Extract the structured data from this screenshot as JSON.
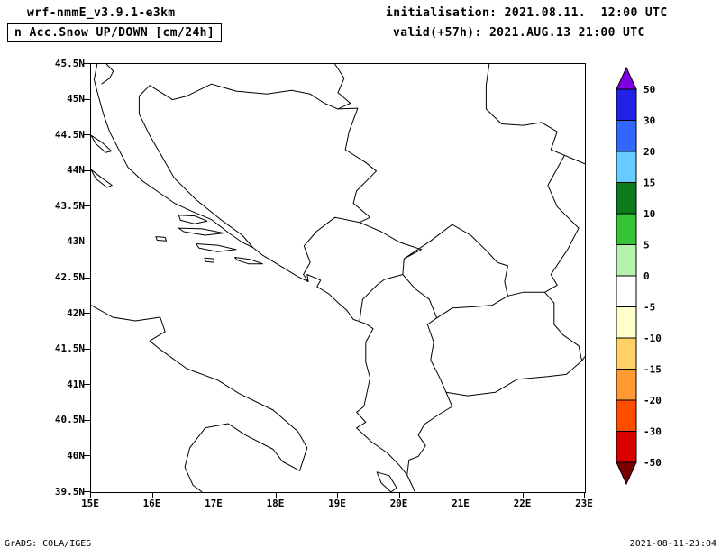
{
  "header": {
    "model_line": "wrf-nmmE_v3.9.1-e3km",
    "product_line": "n Acc.Snow UP/DOWN [cm/24h]",
    "init_line": "initialisation: 2021.08.11.  12:00 UTC",
    "valid_line": "valid(+57h): 2021.AUG.13 21:00 UTC"
  },
  "footer": {
    "credit": "GrADS: COLA/IGES",
    "timestamp": "2021-08-11-23:04"
  },
  "chart_data": {
    "type": "heatmap",
    "title": "24h accumulated snow up/down (cm/24h), wrf-nmmE_v3.9.1-e3km",
    "projection": "lat-lon map of Adriatic / Balkans",
    "lon_range": [
      15,
      23
    ],
    "lat_range": [
      39.5,
      45.5
    ],
    "x_ticks": [
      "15E",
      "16E",
      "17E",
      "18E",
      "19E",
      "20E",
      "21E",
      "22E",
      "23E"
    ],
    "y_ticks": [
      "45.5N",
      "45N",
      "44.5N",
      "44N",
      "43.5N",
      "43N",
      "42.5N",
      "42N",
      "41.5N",
      "41N",
      "40.5N",
      "40N",
      "39.5N"
    ],
    "grid": false,
    "field_value_note": "Entire domain is white: 0 cm/24h accumulated snow everywhere (no shaded data).",
    "colorbar": {
      "unit": "cm/24h",
      "boundary_labels": [
        "50",
        "30",
        "20",
        "15",
        "10",
        "5",
        "0",
        "-5",
        "-10",
        "-15",
        "-20",
        "-30",
        "-50"
      ],
      "cell_colors_top_to_bottom": [
        "#2222e6",
        "#3366ff",
        "#66ccff",
        "#0e7a1e",
        "#35c435",
        "#b5f2ae",
        "#ffffff",
        "#ffffcc",
        "#ffd066",
        "#ff9933",
        "#ff4d00",
        "#d90000"
      ],
      "arrow_top_color": "#8000e6",
      "arrow_bottom_color": "#7a0000"
    },
    "map_outlines": [
      {
        "name": "italy-coast",
        "closed": false,
        "pts": [
          [
            15.0,
            42.12
          ],
          [
            15.35,
            41.95
          ],
          [
            15.72,
            41.9
          ],
          [
            16.12,
            41.95
          ],
          [
            16.2,
            41.75
          ],
          [
            15.95,
            41.62
          ],
          [
            16.12,
            41.5
          ],
          [
            16.55,
            41.23
          ],
          [
            17.05,
            41.07
          ],
          [
            17.4,
            40.88
          ],
          [
            17.95,
            40.65
          ],
          [
            18.35,
            40.35
          ],
          [
            18.5,
            40.12
          ],
          [
            18.38,
            39.8
          ],
          [
            18.1,
            39.93
          ],
          [
            17.95,
            40.1
          ],
          [
            17.5,
            40.3
          ],
          [
            17.22,
            40.46
          ],
          [
            16.85,
            40.4
          ],
          [
            16.6,
            40.12
          ],
          [
            16.52,
            39.85
          ],
          [
            16.65,
            39.6
          ],
          [
            16.8,
            39.5
          ]
        ]
      },
      {
        "name": "east-adriatic-coast",
        "closed": false,
        "pts": [
          [
            15.1,
            45.5
          ],
          [
            15.05,
            45.28
          ],
          [
            15.12,
            45.05
          ],
          [
            15.2,
            44.8
          ],
          [
            15.3,
            44.55
          ],
          [
            15.45,
            44.3
          ],
          [
            15.6,
            44.05
          ],
          [
            15.85,
            43.85
          ],
          [
            16.1,
            43.7
          ],
          [
            16.35,
            43.55
          ],
          [
            16.62,
            43.44
          ],
          [
            16.95,
            43.32
          ],
          [
            17.25,
            43.12
          ],
          [
            17.45,
            43.0
          ],
          [
            17.62,
            42.93
          ],
          [
            17.78,
            42.82
          ],
          [
            18.05,
            42.68
          ],
          [
            18.35,
            42.52
          ],
          [
            18.52,
            42.45
          ],
          [
            18.5,
            42.55
          ],
          [
            18.72,
            42.47
          ],
          [
            18.66,
            42.38
          ],
          [
            18.85,
            42.28
          ],
          [
            19.02,
            42.14
          ],
          [
            19.14,
            42.05
          ],
          [
            19.25,
            41.92
          ],
          [
            19.45,
            41.86
          ],
          [
            19.57,
            41.79
          ],
          [
            19.45,
            41.6
          ],
          [
            19.45,
            41.32
          ],
          [
            19.52,
            41.1
          ],
          [
            19.47,
            40.9
          ],
          [
            19.42,
            40.7
          ],
          [
            19.3,
            40.62
          ],
          [
            19.45,
            40.48
          ],
          [
            19.3,
            40.4
          ],
          [
            19.55,
            40.2
          ],
          [
            19.8,
            40.05
          ],
          [
            20.0,
            39.87
          ],
          [
            20.12,
            39.74
          ],
          [
            20.25,
            39.5
          ]
        ]
      },
      {
        "name": "pag-island",
        "closed": true,
        "pts": [
          [
            15.0,
            44.5
          ],
          [
            15.18,
            44.4
          ],
          [
            15.33,
            44.28
          ],
          [
            15.24,
            44.26
          ],
          [
            15.08,
            44.38
          ]
        ]
      },
      {
        "name": "dugi-otok-island",
        "closed": true,
        "pts": [
          [
            15.0,
            44.02
          ],
          [
            15.18,
            43.9
          ],
          [
            15.34,
            43.8
          ],
          [
            15.26,
            43.77
          ],
          [
            15.08,
            43.89
          ]
        ]
      },
      {
        "name": "brac-island",
        "closed": true,
        "pts": [
          [
            16.42,
            43.38
          ],
          [
            16.68,
            43.37
          ],
          [
            16.88,
            43.3
          ],
          [
            16.68,
            43.26
          ],
          [
            16.45,
            43.31
          ]
        ]
      },
      {
        "name": "hvar-island",
        "closed": true,
        "pts": [
          [
            16.42,
            43.2
          ],
          [
            16.8,
            43.19
          ],
          [
            17.15,
            43.13
          ],
          [
            16.85,
            43.1
          ],
          [
            16.5,
            43.15
          ]
        ]
      },
      {
        "name": "korcula-island",
        "closed": true,
        "pts": [
          [
            16.7,
            42.98
          ],
          [
            17.05,
            42.96
          ],
          [
            17.35,
            42.9
          ],
          [
            17.05,
            42.87
          ],
          [
            16.75,
            42.92
          ]
        ]
      },
      {
        "name": "mljet-island",
        "closed": true,
        "pts": [
          [
            17.33,
            42.79
          ],
          [
            17.58,
            42.76
          ],
          [
            17.78,
            42.7
          ],
          [
            17.55,
            42.7
          ],
          [
            17.37,
            42.75
          ]
        ]
      },
      {
        "name": "vis-island",
        "closed": true,
        "pts": [
          [
            16.05,
            43.08
          ],
          [
            16.2,
            43.07
          ],
          [
            16.22,
            43.02
          ],
          [
            16.07,
            43.03
          ]
        ]
      },
      {
        "name": "lastovo-island",
        "closed": true,
        "pts": [
          [
            16.84,
            42.78
          ],
          [
            16.99,
            42.77
          ],
          [
            16.99,
            42.72
          ],
          [
            16.86,
            42.73
          ]
        ]
      },
      {
        "name": "corfu-island",
        "closed": true,
        "pts": [
          [
            19.63,
            39.78
          ],
          [
            19.83,
            39.73
          ],
          [
            19.95,
            39.56
          ],
          [
            19.86,
            39.5
          ],
          [
            19.7,
            39.63
          ]
        ]
      },
      {
        "name": "slovenia-croatia-border",
        "closed": false,
        "pts": [
          [
            15.25,
            45.5
          ],
          [
            15.36,
            45.4
          ],
          [
            15.3,
            45.3
          ],
          [
            15.17,
            45.22
          ]
        ]
      },
      {
        "name": "croatia-bosnia-border",
        "closed": false,
        "pts": [
          [
            17.62,
            42.93
          ],
          [
            17.45,
            43.1
          ],
          [
            17.1,
            43.32
          ],
          [
            16.7,
            43.6
          ],
          [
            16.35,
            43.9
          ],
          [
            16.15,
            44.2
          ],
          [
            15.95,
            44.5
          ],
          [
            15.78,
            44.8
          ],
          [
            15.78,
            45.05
          ],
          [
            15.95,
            45.2
          ],
          [
            16.32,
            45.0
          ],
          [
            16.55,
            45.05
          ],
          [
            16.95,
            45.22
          ],
          [
            17.35,
            45.12
          ],
          [
            17.85,
            45.08
          ],
          [
            18.25,
            45.13
          ],
          [
            18.55,
            45.08
          ],
          [
            18.78,
            44.95
          ],
          [
            19.0,
            44.87
          ]
        ]
      },
      {
        "name": "bosnia-serbia-border",
        "closed": false,
        "pts": [
          [
            19.0,
            44.87
          ],
          [
            19.32,
            44.88
          ],
          [
            19.18,
            44.55
          ],
          [
            19.12,
            44.3
          ],
          [
            19.45,
            44.12
          ],
          [
            19.62,
            44.0
          ],
          [
            19.3,
            43.72
          ],
          [
            19.25,
            43.55
          ],
          [
            19.52,
            43.35
          ],
          [
            19.35,
            43.28
          ]
        ]
      },
      {
        "name": "bosnia-montenegro-border",
        "closed": false,
        "pts": [
          [
            19.35,
            43.28
          ],
          [
            18.95,
            43.35
          ],
          [
            18.65,
            43.15
          ],
          [
            18.45,
            42.95
          ],
          [
            18.55,
            42.72
          ],
          [
            18.44,
            42.55
          ],
          [
            18.52,
            42.45
          ]
        ]
      },
      {
        "name": "croatia-serbia-border",
        "closed": false,
        "pts": [
          [
            18.95,
            45.5
          ],
          [
            19.1,
            45.3
          ],
          [
            19.0,
            45.1
          ],
          [
            19.2,
            44.95
          ],
          [
            19.0,
            44.87
          ]
        ]
      },
      {
        "name": "serbia-romania-border",
        "closed": false,
        "pts": [
          [
            21.45,
            45.5
          ],
          [
            21.4,
            45.2
          ],
          [
            21.4,
            44.87
          ],
          [
            21.65,
            44.66
          ],
          [
            22.0,
            44.64
          ],
          [
            22.3,
            44.68
          ],
          [
            22.55,
            44.55
          ],
          [
            22.45,
            44.3
          ],
          [
            22.67,
            44.22
          ]
        ]
      },
      {
        "name": "romania-bulgaria-border",
        "closed": false,
        "pts": [
          [
            22.67,
            44.22
          ],
          [
            23.0,
            44.1
          ]
        ]
      },
      {
        "name": "serbia-bulgaria-border",
        "closed": false,
        "pts": [
          [
            22.67,
            44.22
          ],
          [
            22.4,
            43.8
          ],
          [
            22.55,
            43.5
          ],
          [
            22.9,
            43.2
          ],
          [
            22.72,
            42.9
          ],
          [
            22.45,
            42.55
          ],
          [
            22.55,
            42.4
          ],
          [
            22.35,
            42.3
          ]
        ]
      },
      {
        "name": "montenegro-serbia-border",
        "closed": false,
        "pts": [
          [
            19.35,
            43.28
          ],
          [
            19.7,
            43.15
          ],
          [
            20.0,
            43.0
          ],
          [
            20.35,
            42.9
          ],
          [
            20.07,
            42.77
          ]
        ]
      },
      {
        "name": "montenegro-albania-border",
        "closed": false,
        "pts": [
          [
            20.05,
            42.55
          ],
          [
            19.75,
            42.48
          ],
          [
            19.63,
            42.4
          ],
          [
            19.4,
            42.2
          ],
          [
            19.37,
            42.02
          ],
          [
            19.35,
            41.9
          ]
        ]
      },
      {
        "name": "kosovo-border",
        "closed": true,
        "pts": [
          [
            20.07,
            42.77
          ],
          [
            20.5,
            43.02
          ],
          [
            20.85,
            43.25
          ],
          [
            21.15,
            43.1
          ],
          [
            21.42,
            42.87
          ],
          [
            21.58,
            42.72
          ],
          [
            21.75,
            42.67
          ],
          [
            21.7,
            42.45
          ],
          [
            21.75,
            42.25
          ],
          [
            21.5,
            42.12
          ],
          [
            21.22,
            42.1
          ],
          [
            20.85,
            42.08
          ],
          [
            20.6,
            41.94
          ],
          [
            20.48,
            42.2
          ],
          [
            20.25,
            42.35
          ],
          [
            20.05,
            42.55
          ]
        ]
      },
      {
        "name": "serbia-macedonia-border",
        "closed": false,
        "pts": [
          [
            21.75,
            42.25
          ],
          [
            22.0,
            42.3
          ],
          [
            22.35,
            42.3
          ]
        ]
      },
      {
        "name": "bulgaria-macedonia-border",
        "closed": false,
        "pts": [
          [
            22.35,
            42.3
          ],
          [
            22.5,
            42.15
          ],
          [
            22.5,
            41.85
          ],
          [
            22.65,
            41.7
          ],
          [
            22.9,
            41.55
          ],
          [
            22.95,
            41.34
          ]
        ]
      },
      {
        "name": "macedonia-greece-border",
        "closed": false,
        "pts": [
          [
            22.95,
            41.34
          ],
          [
            22.7,
            41.15
          ],
          [
            22.4,
            41.12
          ],
          [
            21.9,
            41.08
          ],
          [
            21.55,
            40.9
          ],
          [
            21.1,
            40.85
          ],
          [
            20.75,
            40.9
          ]
        ]
      },
      {
        "name": "macedonia-albania-border",
        "closed": false,
        "pts": [
          [
            20.75,
            40.9
          ],
          [
            20.65,
            41.1
          ],
          [
            20.5,
            41.35
          ],
          [
            20.55,
            41.6
          ],
          [
            20.45,
            41.85
          ],
          [
            20.6,
            41.94
          ]
        ]
      },
      {
        "name": "albania-greece-border",
        "closed": false,
        "pts": [
          [
            20.75,
            40.9
          ],
          [
            20.85,
            40.7
          ],
          [
            20.62,
            40.58
          ],
          [
            20.4,
            40.45
          ],
          [
            20.3,
            40.3
          ],
          [
            20.42,
            40.15
          ],
          [
            20.3,
            40.0
          ],
          [
            20.15,
            39.95
          ],
          [
            20.12,
            39.74
          ]
        ]
      },
      {
        "name": "greece-bulgaria-border",
        "closed": false,
        "pts": [
          [
            22.95,
            41.34
          ],
          [
            23.0,
            41.4
          ]
        ]
      }
    ]
  }
}
